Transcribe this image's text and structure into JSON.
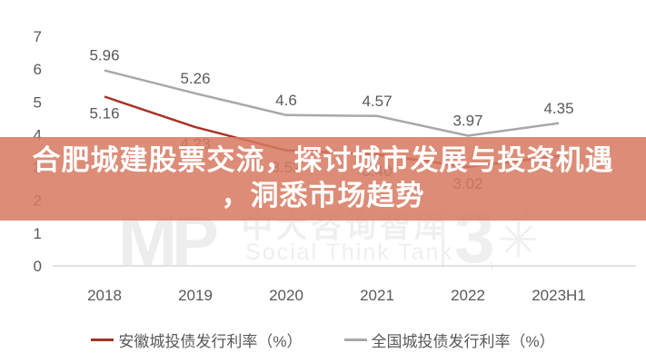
{
  "banner": {
    "line1": "合肥城建股票交流，探讨城市发展与投资机遇",
    "line2": "，洞悉市场趋势",
    "background_rgba": "rgba(214,121,97,0.86)",
    "text_color": "#ffffff"
  },
  "watermark": {
    "logo": "MP",
    "brand_cn": "中大咨询智库",
    "brand_en": "Social Think Tank",
    "anniversary": "3",
    "starburst": "✳",
    "plus": "+",
    "color": "#ededed"
  },
  "chart_data": {
    "type": "line",
    "categories": [
      "2018",
      "2019",
      "2020",
      "2021",
      "2022",
      "2023H1"
    ],
    "series": [
      {
        "name": "安徽城投债发行利率（%）",
        "color": "#a93226",
        "values": [
          5.16,
          4.23,
          3.52,
          3.4,
          3.02,
          3.35
        ],
        "labels": [
          "5.16",
          "4.23",
          "3.52",
          "3.40",
          "3.02",
          ""
        ],
        "label_position": "below"
      },
      {
        "name": "全国城投债发行利率（%）",
        "color": "#a8a8a8",
        "values": [
          5.96,
          5.26,
          4.6,
          4.57,
          3.97,
          4.35
        ],
        "labels": [
          "5.96",
          "5.26",
          "4.6",
          "4.57",
          "3.97",
          "4.35"
        ],
        "label_position": "above"
      }
    ],
    "title": "",
    "xlabel": "",
    "ylabel": "",
    "ylim": [
      0,
      7
    ],
    "yticks": [
      0,
      1,
      2,
      3,
      4,
      5,
      6,
      7
    ],
    "grid": false,
    "legend_position": "bottom",
    "axis_color": "#d9d9d9",
    "label_color": "#595959"
  }
}
